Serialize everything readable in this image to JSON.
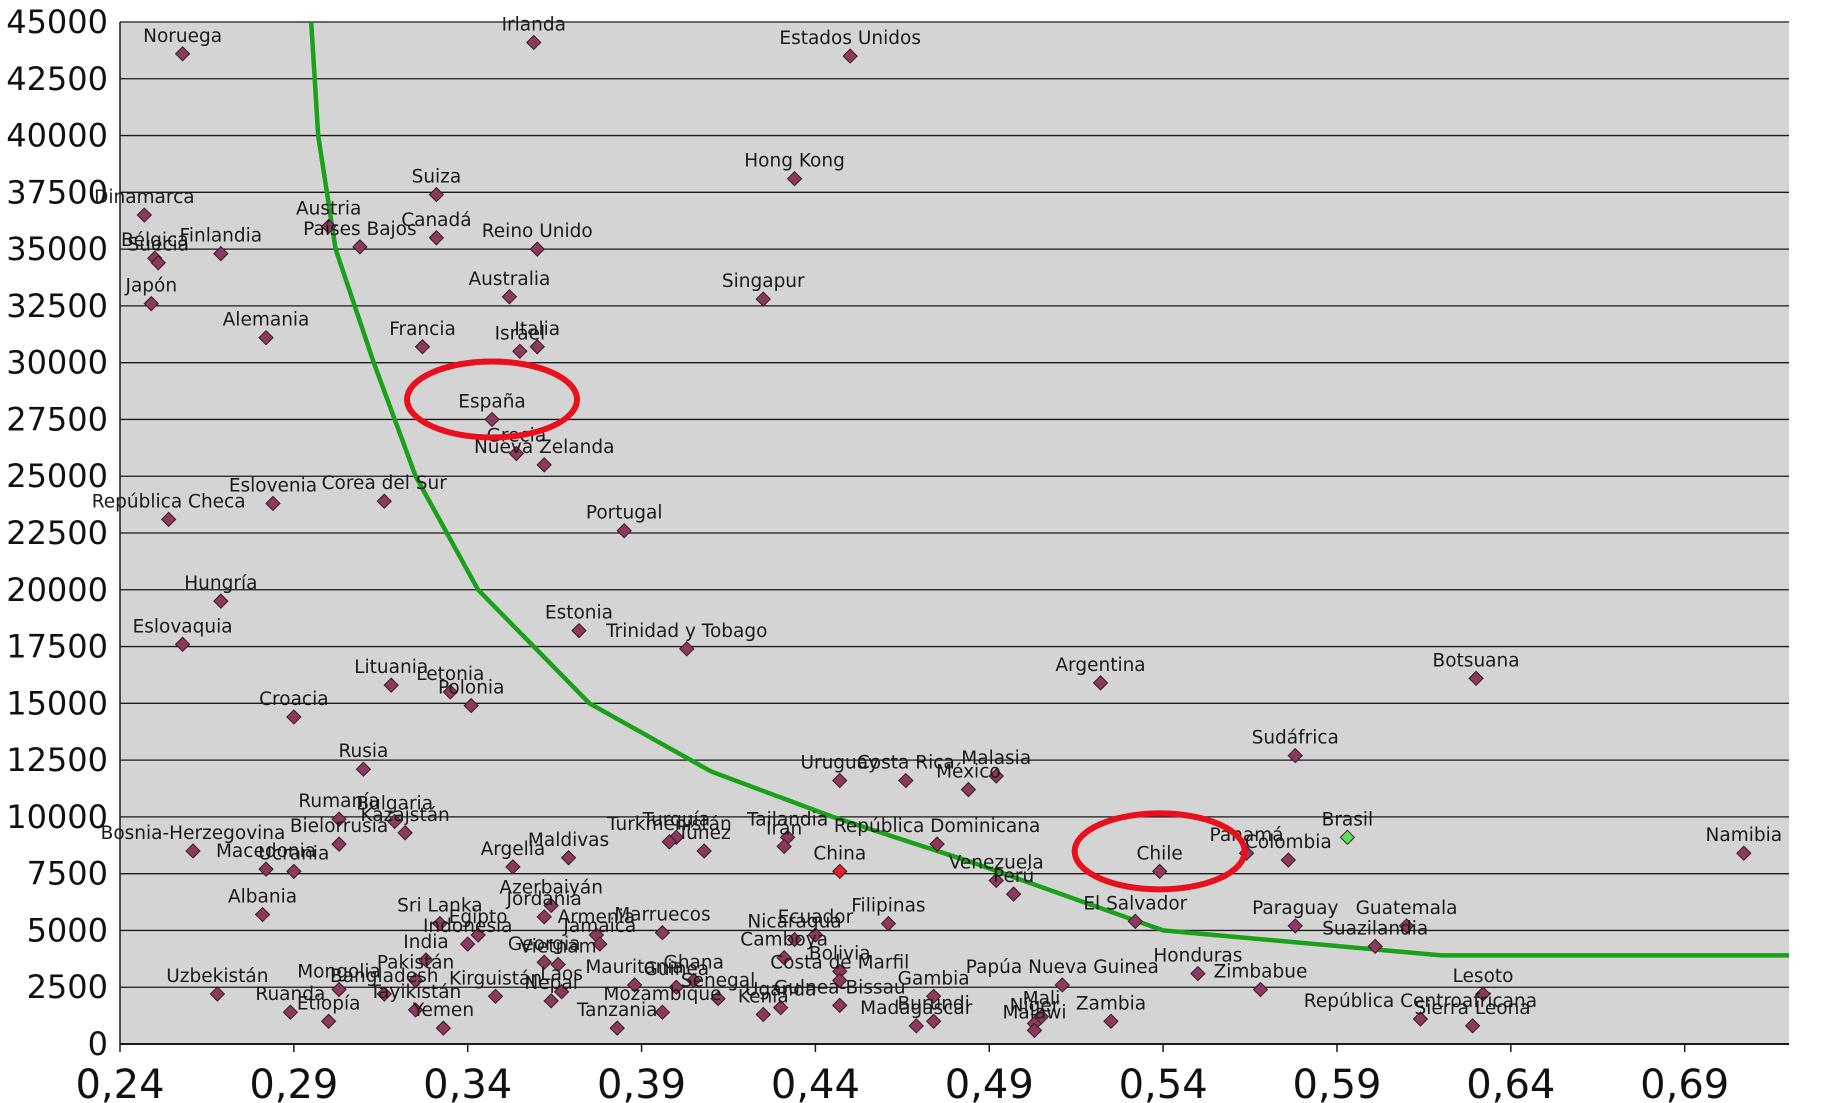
{
  "chart_data": {
    "type": "scatter",
    "title": "",
    "xlabel": "",
    "ylabel": "",
    "xlim": [
      0.24,
      0.72
    ],
    "ylim": [
      0,
      45000
    ],
    "grid": "horizontal",
    "legend": "none",
    "x_ticks": [
      "0,24",
      "0,29",
      "0,34",
      "0,39",
      "0,44",
      "0,49",
      "0,54",
      "0,59",
      "0,64",
      "0,69"
    ],
    "x_tick_values": [
      0.24,
      0.29,
      0.34,
      0.39,
      0.44,
      0.49,
      0.54,
      0.59,
      0.64,
      0.69
    ],
    "y_ticks": [
      "45000",
      "42500",
      "40000",
      "37500",
      "35000",
      "32500",
      "30000",
      "27500",
      "25000",
      "22500",
      "20000",
      "17500",
      "15000",
      "12500",
      "10000",
      "7500",
      "5000",
      "2500",
      "0"
    ],
    "y_tick_values": [
      45000,
      42500,
      40000,
      37500,
      35000,
      32500,
      30000,
      27500,
      25000,
      22500,
      20000,
      17500,
      15000,
      12500,
      10000,
      7500,
      5000,
      2500,
      0
    ],
    "colors": {
      "plot_background": "#d4d4d4",
      "gridline": "#1a1a1a",
      "marker": "#8b3a5e",
      "marker_edge": "#3a1828",
      "marker_china": "#e0202a",
      "marker_brasil": "#5ce05c",
      "curve": "#1aa01a",
      "highlight_circle": "#e8101c"
    },
    "highlighted": [
      "España",
      "Chile"
    ],
    "curve_points": [
      [
        0.295,
        45000
      ],
      [
        0.297,
        40000
      ],
      [
        0.302,
        35000
      ],
      [
        0.313,
        30000
      ],
      [
        0.325,
        25000
      ],
      [
        0.343,
        20000
      ],
      [
        0.375,
        15000
      ],
      [
        0.41,
        12000
      ],
      [
        0.445,
        10000
      ],
      [
        0.485,
        8000
      ],
      [
        0.54,
        5000
      ],
      [
        0.62,
        3900
      ],
      [
        0.72,
        3900
      ]
    ],
    "points": [
      {
        "name": "Noruega",
        "x": 0.258,
        "y": 43600
      },
      {
        "name": "Irlanda",
        "x": 0.359,
        "y": 44100
      },
      {
        "name": "Estados Unidos",
        "x": 0.45,
        "y": 43500
      },
      {
        "name": "Hong Kong",
        "x": 0.434,
        "y": 38100
      },
      {
        "name": "Suiza",
        "x": 0.331,
        "y": 37400
      },
      {
        "name": "Dinamarca",
        "x": 0.247,
        "y": 36500
      },
      {
        "name": "Austria",
        "x": 0.3,
        "y": 36000
      },
      {
        "name": "Canadá",
        "x": 0.331,
        "y": 35500
      },
      {
        "name": "Países Bajos",
        "x": 0.309,
        "y": 35100
      },
      {
        "name": "Reino Unido",
        "x": 0.36,
        "y": 35000
      },
      {
        "name": "Finlandia",
        "x": 0.269,
        "y": 34800
      },
      {
        "name": "Bélgica",
        "x": 0.25,
        "y": 34600
      },
      {
        "name": "Suecia",
        "x": 0.251,
        "y": 34400
      },
      {
        "name": "Australia",
        "x": 0.352,
        "y": 32900
      },
      {
        "name": "Singapur",
        "x": 0.425,
        "y": 32800
      },
      {
        "name": "Japón",
        "x": 0.249,
        "y": 32600
      },
      {
        "name": "Alemania",
        "x": 0.282,
        "y": 31100
      },
      {
        "name": "Francia",
        "x": 0.327,
        "y": 30700
      },
      {
        "name": "Italia",
        "x": 0.36,
        "y": 30700
      },
      {
        "name": "Israel",
        "x": 0.355,
        "y": 30500
      },
      {
        "name": "España",
        "x": 0.347,
        "y": 27500
      },
      {
        "name": "Grecia",
        "x": 0.354,
        "y": 26000
      },
      {
        "name": "Nueva Zelanda",
        "x": 0.362,
        "y": 25500
      },
      {
        "name": "Eslovenia",
        "x": 0.284,
        "y": 23800
      },
      {
        "name": "Corea del Sur",
        "x": 0.316,
        "y": 23900
      },
      {
        "name": "República Checa",
        "x": 0.254,
        "y": 23100
      },
      {
        "name": "Portugal",
        "x": 0.385,
        "y": 22600
      },
      {
        "name": "Hungría",
        "x": 0.269,
        "y": 19500
      },
      {
        "name": "Estonia",
        "x": 0.372,
        "y": 18200
      },
      {
        "name": "Eslovaquia",
        "x": 0.258,
        "y": 17600
      },
      {
        "name": "Trinidad y Tobago",
        "x": 0.403,
        "y": 17400
      },
      {
        "name": "Argentina",
        "x": 0.522,
        "y": 15900
      },
      {
        "name": "Botsuana",
        "x": 0.63,
        "y": 16100
      },
      {
        "name": "Lituania",
        "x": 0.318,
        "y": 15800
      },
      {
        "name": "Letonia",
        "x": 0.335,
        "y": 15500
      },
      {
        "name": "Polonia",
        "x": 0.341,
        "y": 14900
      },
      {
        "name": "Croacia",
        "x": 0.29,
        "y": 14400
      },
      {
        "name": "Sudáfrica",
        "x": 0.578,
        "y": 12700
      },
      {
        "name": "Rusia",
        "x": 0.31,
        "y": 12100
      },
      {
        "name": "Malasia",
        "x": 0.492,
        "y": 11800
      },
      {
        "name": "Uruguay",
        "x": 0.447,
        "y": 11600
      },
      {
        "name": "Costa Rica",
        "x": 0.466,
        "y": 11600
      },
      {
        "name": "México",
        "x": 0.484,
        "y": 11200
      },
      {
        "name": "Rumanía",
        "x": 0.303,
        "y": 9900
      },
      {
        "name": "Bulgaria",
        "x": 0.319,
        "y": 9800
      },
      {
        "name": "Kazajstán",
        "x": 0.322,
        "y": 9300
      },
      {
        "name": "Bielorrusia",
        "x": 0.303,
        "y": 8800
      },
      {
        "name": "Bosnia-Herzegovina",
        "x": 0.261,
        "y": 8500
      },
      {
        "name": "Brasil",
        "x": 0.593,
        "y": 9100
      },
      {
        "name": "Turquía",
        "x": 0.4,
        "y": 9100
      },
      {
        "name": "Turkmenistán",
        "x": 0.398,
        "y": 8900
      },
      {
        "name": "Tailandia",
        "x": 0.432,
        "y": 9100
      },
      {
        "name": "Irán",
        "x": 0.431,
        "y": 8700
      },
      {
        "name": "República Dominicana",
        "x": 0.475,
        "y": 8800
      },
      {
        "name": "Namibia",
        "x": 0.707,
        "y": 8400
      },
      {
        "name": "Panamá",
        "x": 0.564,
        "y": 8400
      },
      {
        "name": "Colombia",
        "x": 0.576,
        "y": 8100
      },
      {
        "name": "Maldivas",
        "x": 0.369,
        "y": 8200
      },
      {
        "name": "Túnez",
        "x": 0.408,
        "y": 8500
      },
      {
        "name": "Macedonia",
        "x": 0.282,
        "y": 7700
      },
      {
        "name": "Ucrania",
        "x": 0.29,
        "y": 7600
      },
      {
        "name": "Argelia",
        "x": 0.353,
        "y": 7800
      },
      {
        "name": "China",
        "x": 0.447,
        "y": 7600
      },
      {
        "name": "Chile",
        "x": 0.539,
        "y": 7600
      },
      {
        "name": "Venezuela",
        "x": 0.492,
        "y": 7200
      },
      {
        "name": "Perú",
        "x": 0.497,
        "y": 6600
      },
      {
        "name": "Azerbaiyán",
        "x": 0.364,
        "y": 6100
      },
      {
        "name": "Jordania",
        "x": 0.362,
        "y": 5600
      },
      {
        "name": "Albania",
        "x": 0.281,
        "y": 5700
      },
      {
        "name": "El Salvador",
        "x": 0.532,
        "y": 5400
      },
      {
        "name": "Filipinas",
        "x": 0.461,
        "y": 5300
      },
      {
        "name": "Paraguay",
        "x": 0.578,
        "y": 5200
      },
      {
        "name": "Guatemala",
        "x": 0.61,
        "y": 5200
      },
      {
        "name": "Suazilandia",
        "x": 0.601,
        "y": 4300
      },
      {
        "name": "Sri Lanka",
        "x": 0.332,
        "y": 5300
      },
      {
        "name": "Egipto",
        "x": 0.343,
        "y": 4800
      },
      {
        "name": "Indonesia",
        "x": 0.34,
        "y": 4400
      },
      {
        "name": "Armenia",
        "x": 0.377,
        "y": 4800
      },
      {
        "name": "Marruecos",
        "x": 0.396,
        "y": 4900
      },
      {
        "name": "Jamaica",
        "x": 0.378,
        "y": 4400
      },
      {
        "name": "Nicaragua",
        "x": 0.434,
        "y": 4600
      },
      {
        "name": "Ecuador",
        "x": 0.44,
        "y": 4800
      },
      {
        "name": "India",
        "x": 0.328,
        "y": 3700
      },
      {
        "name": "Georgia",
        "x": 0.362,
        "y": 3600
      },
      {
        "name": "Vietnam",
        "x": 0.366,
        "y": 3500
      },
      {
        "name": "Bolivia",
        "x": 0.447,
        "y": 3200
      },
      {
        "name": "Camboya",
        "x": 0.431,
        "y": 3800
      },
      {
        "name": "Honduras",
        "x": 0.55,
        "y": 3100
      },
      {
        "name": "Zimbabue",
        "x": 0.568,
        "y": 2400
      },
      {
        "name": "Papúa Nueva Guinea",
        "x": 0.511,
        "y": 2600
      },
      {
        "name": "Pakistán",
        "x": 0.325,
        "y": 2800
      },
      {
        "name": "Uzbekistán",
        "x": 0.268,
        "y": 2200
      },
      {
        "name": "Mongolia",
        "x": 0.303,
        "y": 2400
      },
      {
        "name": "Bangladesh",
        "x": 0.316,
        "y": 2200
      },
      {
        "name": "Kirguistán",
        "x": 0.348,
        "y": 2100
      },
      {
        "name": "Laos",
        "x": 0.367,
        "y": 2300
      },
      {
        "name": "Mauritania",
        "x": 0.388,
        "y": 2600
      },
      {
        "name": "Guinea",
        "x": 0.4,
        "y": 2500
      },
      {
        "name": "Ghana",
        "x": 0.405,
        "y": 2800
      },
      {
        "name": "Senegal",
        "x": 0.412,
        "y": 2000
      },
      {
        "name": "Costa de Marfil",
        "x": 0.447,
        "y": 2800
      },
      {
        "name": "Kenia",
        "x": 0.425,
        "y": 1300
      },
      {
        "name": "Gambia",
        "x": 0.474,
        "y": 2100
      },
      {
        "name": "Tayikistán",
        "x": 0.325,
        "y": 1500
      },
      {
        "name": "Nepal",
        "x": 0.364,
        "y": 1900
      },
      {
        "name": "Mozambique",
        "x": 0.396,
        "y": 1400
      },
      {
        "name": "Uganda",
        "x": 0.43,
        "y": 1600
      },
      {
        "name": "Ruanda",
        "x": 0.289,
        "y": 1400
      },
      {
        "name": "Etiopía",
        "x": 0.3,
        "y": 1000
      },
      {
        "name": "Yemen",
        "x": 0.333,
        "y": 700
      },
      {
        "name": "Tanzania",
        "x": 0.383,
        "y": 700
      },
      {
        "name": "Guinea-Bissau",
        "x": 0.447,
        "y": 1700
      },
      {
        "name": "Madagascar",
        "x": 0.469,
        "y": 800
      },
      {
        "name": "Burundi",
        "x": 0.474,
        "y": 1000
      },
      {
        "name": "Níger",
        "x": 0.503,
        "y": 900
      },
      {
        "name": "Mali",
        "x": 0.505,
        "y": 1200
      },
      {
        "name": "Malawi",
        "x": 0.503,
        "y": 600
      },
      {
        "name": "Zambia",
        "x": 0.525,
        "y": 1000
      },
      {
        "name": "Lesoto",
        "x": 0.632,
        "y": 2200
      },
      {
        "name": "República Centroafricana",
        "x": 0.614,
        "y": 1100
      },
      {
        "name": "Sierra Leona",
        "x": 0.629,
        "y": 800
      }
    ]
  }
}
